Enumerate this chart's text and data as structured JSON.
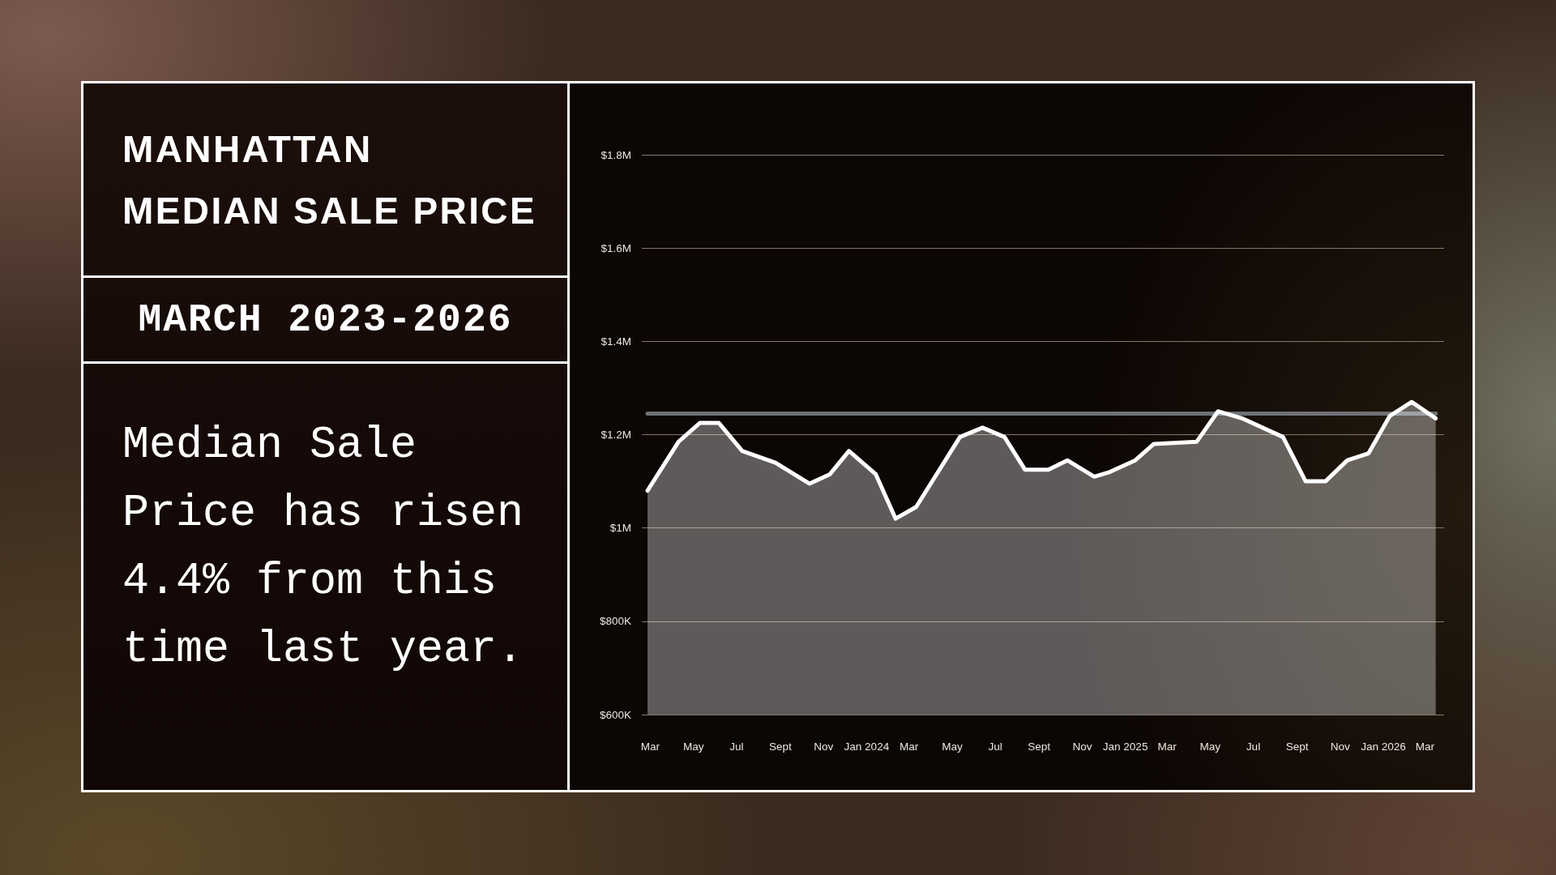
{
  "chart_data": {
    "type": "area",
    "title": "MANHATTAN\nMEDIAN SALE PRICE",
    "subtitle": "MARCH 2023-2026",
    "annotations": [
      "Median Sale Price has risen 4.4% from this time last year."
    ],
    "x": [
      "2023-02-25",
      "2023-04-10",
      "2023-05-10",
      "2023-06-06",
      "2023-07-09",
      "2023-08-25",
      "2023-10-12",
      "2023-11-10",
      "2023-12-07",
      "2024-01-14",
      "2024-02-11",
      "2024-03-11",
      "2024-05-12",
      "2024-06-13",
      "2024-07-14",
      "2024-08-12",
      "2024-09-14",
      "2024-10-11",
      "2024-11-18",
      "2024-12-10",
      "2025-01-15",
      "2025-02-10",
      "2025-04-12",
      "2025-05-12",
      "2025-06-15",
      "2025-08-12",
      "2025-09-13",
      "2025-10-11",
      "2025-11-11",
      "2025-12-11",
      "2026-01-10",
      "2026-02-10",
      "2026-03-16"
    ],
    "values": [
      1080000,
      1185000,
      1225000,
      1225000,
      1165000,
      1140000,
      1095000,
      1115000,
      1165000,
      1115000,
      1020000,
      1045000,
      1195000,
      1215000,
      1195000,
      1125000,
      1125000,
      1145000,
      1110000,
      1120000,
      1145000,
      1180000,
      1185000,
      1250000,
      1235000,
      1195000,
      1100000,
      1100000,
      1145000,
      1160000,
      1240000,
      1270000,
      1235000
    ],
    "color": "#ffffff",
    "xlim": [
      "2023-02-17",
      "2026-03-28"
    ],
    "xticks": [
      {
        "value": "2023-03-01",
        "label": "Mar"
      },
      {
        "value": "2023-05-01",
        "label": "May"
      },
      {
        "value": "2023-07-01",
        "label": "Jul"
      },
      {
        "value": "2023-09-01",
        "label": "Sept"
      },
      {
        "value": "2023-11-01",
        "label": "Nov"
      },
      {
        "value": "2024-01-01",
        "label": "Jan 2024"
      },
      {
        "value": "2024-03-01",
        "label": "Mar"
      },
      {
        "value": "2024-05-01",
        "label": "May"
      },
      {
        "value": "2024-07-01",
        "label": "Jul"
      },
      {
        "value": "2024-09-01",
        "label": "Sept"
      },
      {
        "value": "2024-11-01",
        "label": "Nov"
      },
      {
        "value": "2025-01-01",
        "label": "Jan 2025"
      },
      {
        "value": "2025-03-01",
        "label": "Mar"
      },
      {
        "value": "2025-05-01",
        "label": "May"
      },
      {
        "value": "2025-07-01",
        "label": "Jul"
      },
      {
        "value": "2025-09-01",
        "label": "Sept"
      },
      {
        "value": "2025-11-01",
        "label": "Nov"
      },
      {
        "value": "2026-01-01",
        "label": "Jan 2026"
      },
      {
        "value": "2026-03-01",
        "label": "Mar"
      }
    ],
    "ylim": [
      600000,
      1800000
    ],
    "yticks": [
      {
        "value": 600000,
        "label": "$600K"
      },
      {
        "value": 800000,
        "label": "$800K"
      },
      {
        "value": 1000000,
        "label": "$1M"
      },
      {
        "value": 1200000,
        "label": "$1.2M"
      },
      {
        "value": 1400000,
        "label": "$1.4M"
      },
      {
        "value": 1600000,
        "label": "$1.6M"
      },
      {
        "value": 1800000,
        "label": "$1.8M"
      }
    ],
    "grid": "y",
    "ref_lines": [
      {
        "axis": "y",
        "value": 1245000,
        "color": "#6e7277"
      }
    ]
  }
}
